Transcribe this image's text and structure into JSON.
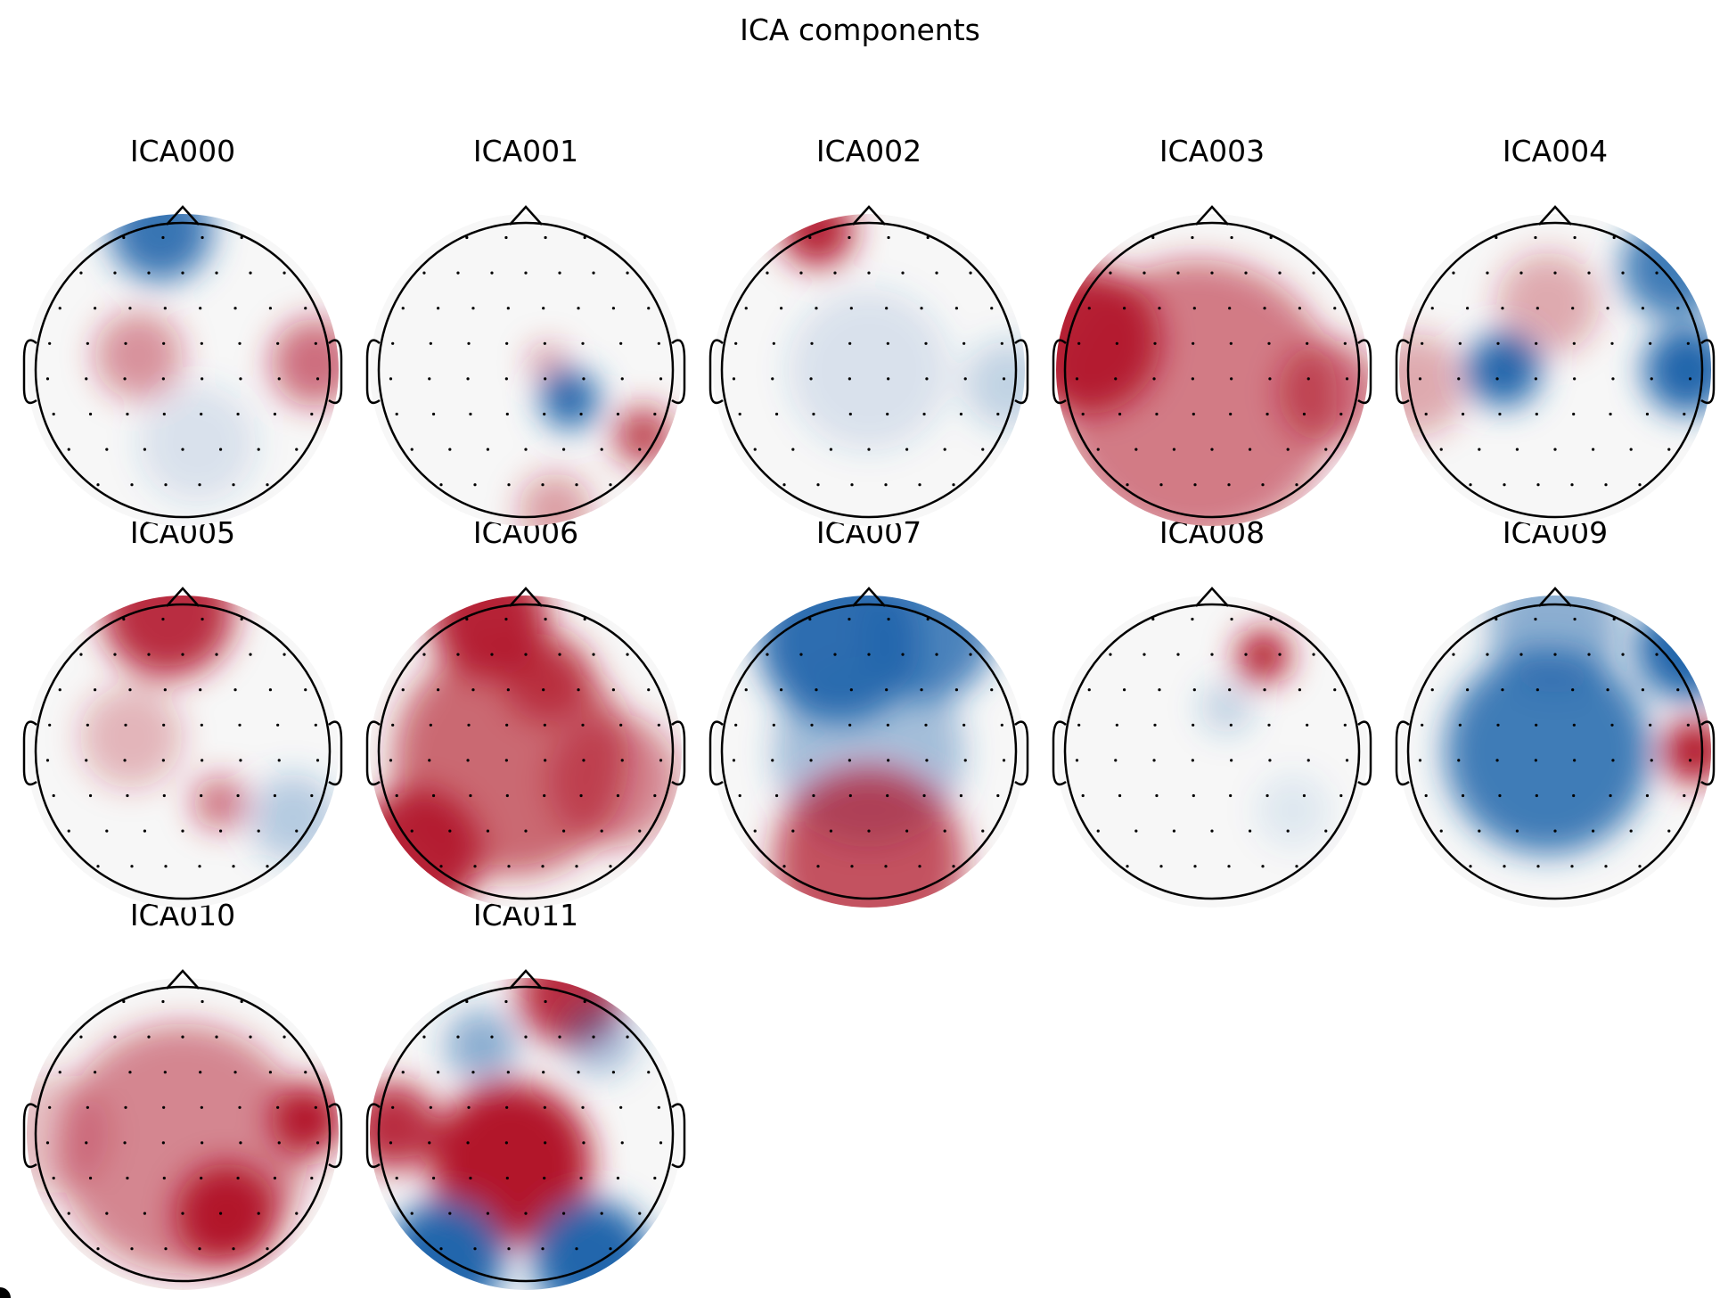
{
  "figure": {
    "title": "ICA components"
  },
  "colors": {
    "positive": "#b2182b",
    "negative": "#2166ac",
    "neutral": "#f7f7f7",
    "outline": "#000000"
  },
  "components": [
    {
      "name": "ICA000"
    },
    {
      "name": "ICA001"
    },
    {
      "name": "ICA002"
    },
    {
      "name": "ICA003"
    },
    {
      "name": "ICA004"
    },
    {
      "name": "ICA005"
    },
    {
      "name": "ICA006"
    },
    {
      "name": "ICA007"
    },
    {
      "name": "ICA008"
    },
    {
      "name": "ICA009"
    },
    {
      "name": "ICA010"
    },
    {
      "name": "ICA011"
    }
  ]
}
